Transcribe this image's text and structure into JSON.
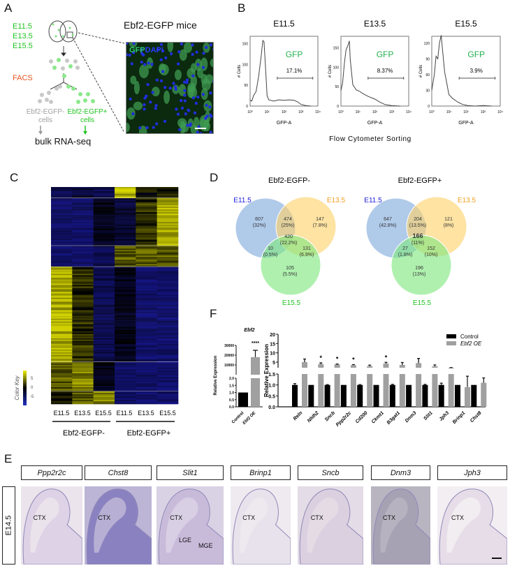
{
  "panels": {
    "A": "A",
    "B": "B",
    "C": "C",
    "D": "D",
    "E": "E",
    "F": "F"
  },
  "panel_a": {
    "stages": [
      "E11.5",
      "E13.5",
      "E15.5"
    ],
    "facs": "FACS",
    "neg_label_1": "Ebf2-EGFP-",
    "neg_label_2": "cells",
    "pos_label_1": "Ebf2-EGFP+",
    "pos_label_2": "cells",
    "bulk": "bulk RNA-seq",
    "mice_title": "Ebf2-EGFP mice",
    "stain_gfp": "GFP",
    "stain_dapi": "DAPI",
    "colors": {
      "green": "#22c322",
      "orange": "#e8541e",
      "gray": "#a0a0a0"
    }
  },
  "panel_b": {
    "footer": "Flow Cytometer Sorting",
    "xlabel": "GFP-A",
    "ylabel": "# Cells",
    "xticks": [
      "10⁰",
      "10¹",
      "10²",
      "10³",
      "10⁴"
    ],
    "gate_label": "GFP"
  },
  "panel_c": {
    "color_key_label": "Color Key",
    "key_ticks": [
      "5",
      "0",
      "-5"
    ],
    "columns": [
      "E11.5",
      "E13.5",
      "E15.5",
      "E11.5",
      "E13.5",
      "E15.5"
    ],
    "groups": [
      "Ebf2-EGFP-",
      "Ebf2-EGFP+"
    ]
  },
  "panel_d": {
    "venns": [
      {
        "title": "Ebf2-EGFP-",
        "sets": [
          "E11.5",
          "E13.5",
          "E15.5"
        ],
        "regions": [
          [
            "607",
            "(32%)"
          ],
          [
            "474",
            "(25%)"
          ],
          [
            "147",
            "(7.8%)"
          ],
          [
            "420",
            "(22.2%)"
          ],
          [
            "10",
            "(0.5%)"
          ],
          [
            "131",
            "(6.9%)"
          ],
          [
            "105",
            "(5.5%)"
          ]
        ]
      },
      {
        "title": "Ebf2-EGFP+",
        "sets": [
          "E11.5",
          "E13.5",
          "E15.5"
        ],
        "regions": [
          [
            "647",
            "(42.8%)"
          ],
          [
            "204",
            "(13.5%)"
          ],
          [
            "121",
            "(8%)"
          ],
          [
            "166",
            "(11%)"
          ],
          [
            "27",
            "(1.8%)"
          ],
          [
            "152",
            "(10%)"
          ],
          [
            "196",
            "(13%)"
          ]
        ]
      }
    ],
    "set_colors": [
      "#1a1adc",
      "#f0a020",
      "#22c322"
    ]
  },
  "panel_e": {
    "row_label": "E14.5",
    "genes": [
      "Ppp2r2c",
      "Chst8",
      "Slit1",
      "Brinp1",
      "Sncb",
      "Dnm3",
      "Jph3"
    ],
    "region_ctx": "CTX",
    "region_lge": "LGE",
    "region_mge": "MGE"
  },
  "chart_data": [
    {
      "type": "line",
      "title": "E11.5",
      "xlabel": "GFP-A",
      "ylabel": "# Cells",
      "xscale": "log",
      "xlim": [
        0,
        4
      ],
      "ylim": [
        0,
        168
      ],
      "yticks": [
        "0",
        "50",
        "100",
        "150"
      ],
      "gate": [
        1.6,
        3.7
      ],
      "gate_pct": "17.1%",
      "points": [
        [
          0,
          15
        ],
        [
          0.1,
          12
        ],
        [
          0.2,
          25
        ],
        [
          0.35,
          35
        ],
        [
          0.5,
          70
        ],
        [
          0.65,
          120
        ],
        [
          0.75,
          158
        ],
        [
          0.82,
          155
        ],
        [
          0.9,
          100
        ],
        [
          1.0,
          25
        ],
        [
          1.1,
          15
        ],
        [
          1.4,
          12
        ],
        [
          1.7,
          15
        ],
        [
          2.0,
          14
        ],
        [
          2.3,
          15
        ],
        [
          2.6,
          14
        ],
        [
          2.8,
          10
        ],
        [
          3.0,
          4
        ],
        [
          3.3,
          1
        ],
        [
          3.6,
          0
        ]
      ]
    },
    {
      "type": "line",
      "title": "E13.5",
      "xlabel": "GFP-A",
      "ylabel": "# Cells",
      "xscale": "log",
      "xlim": [
        0,
        4
      ],
      "ylim": [
        0,
        180
      ],
      "yticks": [
        "0",
        "50",
        "100",
        "150"
      ],
      "gate": [
        1.6,
        3.7
      ],
      "gate_pct": "8.37%",
      "points": [
        [
          0,
          40
        ],
        [
          0.1,
          60
        ],
        [
          0.2,
          110
        ],
        [
          0.3,
          145
        ],
        [
          0.4,
          155
        ],
        [
          0.5,
          168
        ],
        [
          0.55,
          120
        ],
        [
          0.7,
          55
        ],
        [
          0.9,
          42
        ],
        [
          1.1,
          38
        ],
        [
          1.3,
          32
        ],
        [
          1.6,
          25
        ],
        [
          2.0,
          18
        ],
        [
          2.3,
          10
        ],
        [
          2.6,
          4
        ],
        [
          3.0,
          1
        ],
        [
          3.5,
          0
        ]
      ]
    },
    {
      "type": "line",
      "title": "E15.5",
      "xlabel": "GFP-A",
      "ylabel": "# Cells",
      "xscale": "log",
      "xlim": [
        0,
        4
      ],
      "ylim": [
        0,
        133
      ],
      "yticks": [
        "0",
        "30",
        "60",
        "90",
        "120"
      ],
      "gate": [
        1.6,
        3.7
      ],
      "gate_pct": "3.9%",
      "points": [
        [
          0,
          30
        ],
        [
          0.05,
          40
        ],
        [
          0.15,
          60
        ],
        [
          0.25,
          95
        ],
        [
          0.35,
          90
        ],
        [
          0.45,
          120
        ],
        [
          0.55,
          135
        ],
        [
          0.62,
          110
        ],
        [
          0.75,
          65
        ],
        [
          0.9,
          40
        ],
        [
          1.0,
          22
        ],
        [
          1.2,
          15
        ],
        [
          1.5,
          8
        ],
        [
          1.8,
          3
        ],
        [
          2.1,
          1
        ],
        [
          2.5,
          0
        ],
        [
          3.0,
          1
        ],
        [
          3.5,
          0
        ]
      ]
    },
    {
      "type": "heatmap",
      "columns": [
        "E11.5",
        "E13.5",
        "E15.5",
        "E11.5",
        "E13.5",
        "E15.5"
      ],
      "range": [
        -5,
        5
      ],
      "clusters": [
        {
          "rows": 8,
          "means": [
            -3,
            -2,
            -3,
            4,
            0,
            1
          ]
        },
        {
          "rows": 34,
          "means": [
            -4,
            -4,
            -1,
            -2,
            1,
            4
          ]
        },
        {
          "rows": 15,
          "means": [
            -4,
            -4,
            -3,
            2,
            2,
            2
          ]
        },
        {
          "rows": 68,
          "means": [
            4,
            1,
            -3,
            -1,
            -4,
            -4
          ]
        },
        {
          "rows": 21,
          "means": [
            2,
            3,
            -1,
            -4,
            -4,
            -4
          ]
        },
        {
          "rows": 9,
          "means": [
            0,
            2,
            3,
            -4,
            -4,
            -4
          ]
        }
      ]
    },
    {
      "type": "bar",
      "title": "Ebf2",
      "ylabel": "Relative Expression",
      "categories": [
        "Control",
        "Ebf2 OE"
      ],
      "values": [
        1.0,
        18000
      ],
      "errors": [
        0.02,
        7000
      ],
      "significance": [
        "",
        "****"
      ],
      "yticks_lower": [
        "0.0",
        "0.5",
        "1.0",
        "1.5",
        "2.0"
      ],
      "yticks_upper": [
        "10000",
        "20000",
        "30000"
      ]
    },
    {
      "type": "bar",
      "ylabel": "Relative Expression",
      "categories": [
        "Reln",
        "Nhlh2",
        "Sncb",
        "Ppp2r2c",
        "Cd200",
        "Ckmt1",
        "B3gat1",
        "Dnm3",
        "Slit1",
        "Jph3",
        "Brinp1",
        "Chst8"
      ],
      "series": [
        {
          "name": "Control",
          "color": "#000000",
          "values": [
            1,
            1,
            1,
            1,
            1,
            1,
            1,
            1,
            1,
            1,
            1,
            1
          ],
          "errors": [
            0.06,
            0,
            0.02,
            0,
            0.02,
            0,
            0.03,
            0,
            0.03,
            0.08,
            0,
            0
          ]
        },
        {
          "name": "Ebf2 OE",
          "color": "#a0a0a0",
          "values": [
            5,
            4,
            3.8,
            3.4,
            2.9,
            4.3,
            3.5,
            4.5,
            2.8,
            2.0,
            0.9,
            1.1
          ],
          "errors": [
            1.7,
            0.6,
            0.2,
            0.3,
            0.5,
            0.6,
            1.3,
            2.5,
            0.7,
            0.1,
            0.5,
            0.22
          ]
        }
      ],
      "significance": [
        "",
        "*",
        "*",
        "*",
        "",
        "*",
        "",
        "",
        "",
        "",
        "",
        ""
      ],
      "yticks_lower": [
        "0.0",
        "0.5",
        "1.0",
        "1.5"
      ],
      "yticks_upper": [
        "5",
        "10",
        "15",
        "20"
      ],
      "legend": "top-right"
    }
  ]
}
